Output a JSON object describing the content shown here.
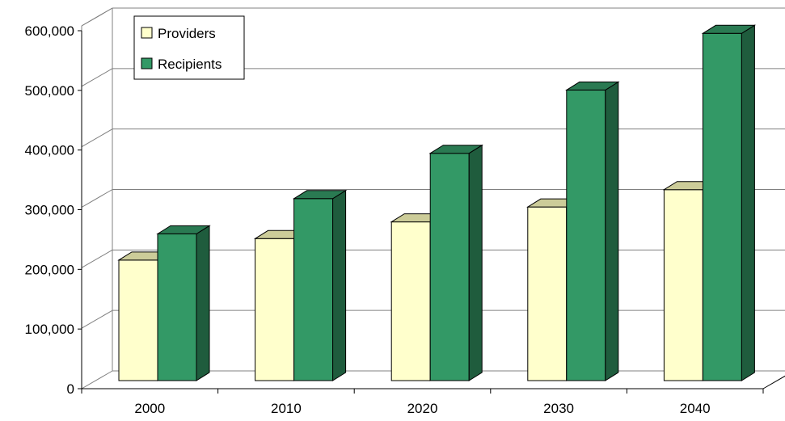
{
  "chart_data": {
    "type": "bar",
    "title": "",
    "xlabel": "",
    "ylabel": "",
    "categories": [
      "2000",
      "2010",
      "2020",
      "2030",
      "2040"
    ],
    "series": [
      {
        "name": "Providers",
        "values": [
          202000,
          238000,
          266000,
          291000,
          320000
        ],
        "color": "#ffffcc"
      },
      {
        "name": "Recipients",
        "values": [
          246000,
          305000,
          381000,
          487000,
          582000
        ],
        "color": "#339966"
      }
    ],
    "ylim": [
      0,
      600000
    ],
    "yticks": [
      0,
      100000,
      200000,
      300000,
      400000,
      500000,
      600000
    ],
    "ytick_labels": [
      "0",
      "100,000",
      "200,000",
      "300,000",
      "400,000",
      "500,000",
      "600,000"
    ],
    "grid": true,
    "legend_position": "top-left",
    "style": "3d-clustered-column",
    "colors": {
      "grid": "#808080",
      "bar_outline": "#000000",
      "providers_side": "#999966",
      "recipients_side": "#1f5c3d"
    }
  }
}
